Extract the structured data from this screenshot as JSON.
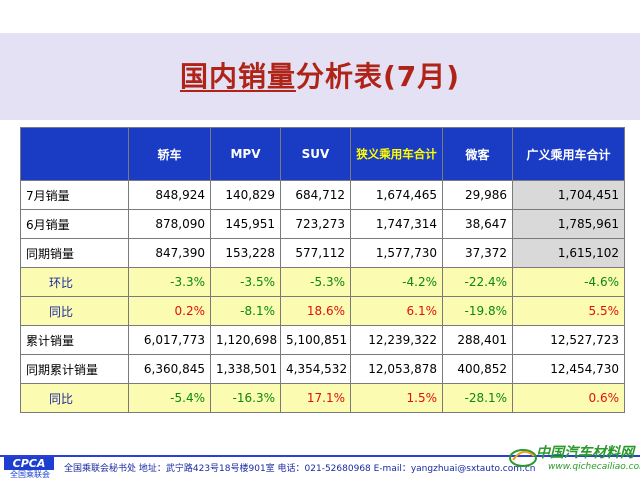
{
  "title": {
    "part1": "国内销量",
    "part2": "分析表(7月)"
  },
  "table": {
    "headers": [
      "",
      "轿车",
      "MPV",
      "SUV",
      "狭义乘用车合计",
      "微客",
      "广义乘用车合计"
    ],
    "rows": [
      {
        "label": "7月销量",
        "values": [
          "848,924",
          "140,829",
          "684,712",
          "1,674,465",
          "29,986",
          "1,704,451"
        ]
      },
      {
        "label": "6月销量",
        "values": [
          "878,090",
          "145,951",
          "723,273",
          "1,747,314",
          "38,647",
          "1,785,961"
        ]
      },
      {
        "label": "同期销量",
        "values": [
          "847,390",
          "153,228",
          "577,112",
          "1,577,730",
          "37,372",
          "1,615,102"
        ]
      },
      {
        "label": "环比",
        "values": [
          "-3.3%",
          "-3.5%",
          "-5.3%",
          "-4.2%",
          "-22.4%",
          "-4.6%"
        ]
      },
      {
        "label": "同比",
        "values": [
          "0.2%",
          "-8.1%",
          "18.6%",
          "6.1%",
          "-19.8%",
          "5.5%"
        ]
      },
      {
        "label": "累计销量",
        "values": [
          "6,017,773",
          "1,120,698",
          "5,100,851",
          "12,239,322",
          "288,401",
          "12,527,723"
        ]
      },
      {
        "label": "同期累计销量",
        "values": [
          "6,360,845",
          "1,338,501",
          "4,354,532",
          "12,053,878",
          "400,852",
          "12,454,730"
        ]
      },
      {
        "label": "同比",
        "values": [
          "-5.4%",
          "-16.3%",
          "17.1%",
          "1.5%",
          "-28.1%",
          "0.6%"
        ]
      }
    ]
  },
  "footer": {
    "logo": "CPCA",
    "logo_sub": "全国乘联会",
    "text": "全国乘联会秘书处  地址：武宁路423号18号楼901室    电话：021-52680968  E-mail：yangzhuai@sxtauto.com.cn"
  },
  "watermark": {
    "name": "中国汽车材料网",
    "url": "www.qichecailiao.com"
  },
  "colors": {
    "header_bg": "#1a3cc4",
    "highlight_row": "#fbfbb2",
    "positive": "#e01010",
    "negative": "#0a8a0a",
    "title": "#b02418"
  }
}
